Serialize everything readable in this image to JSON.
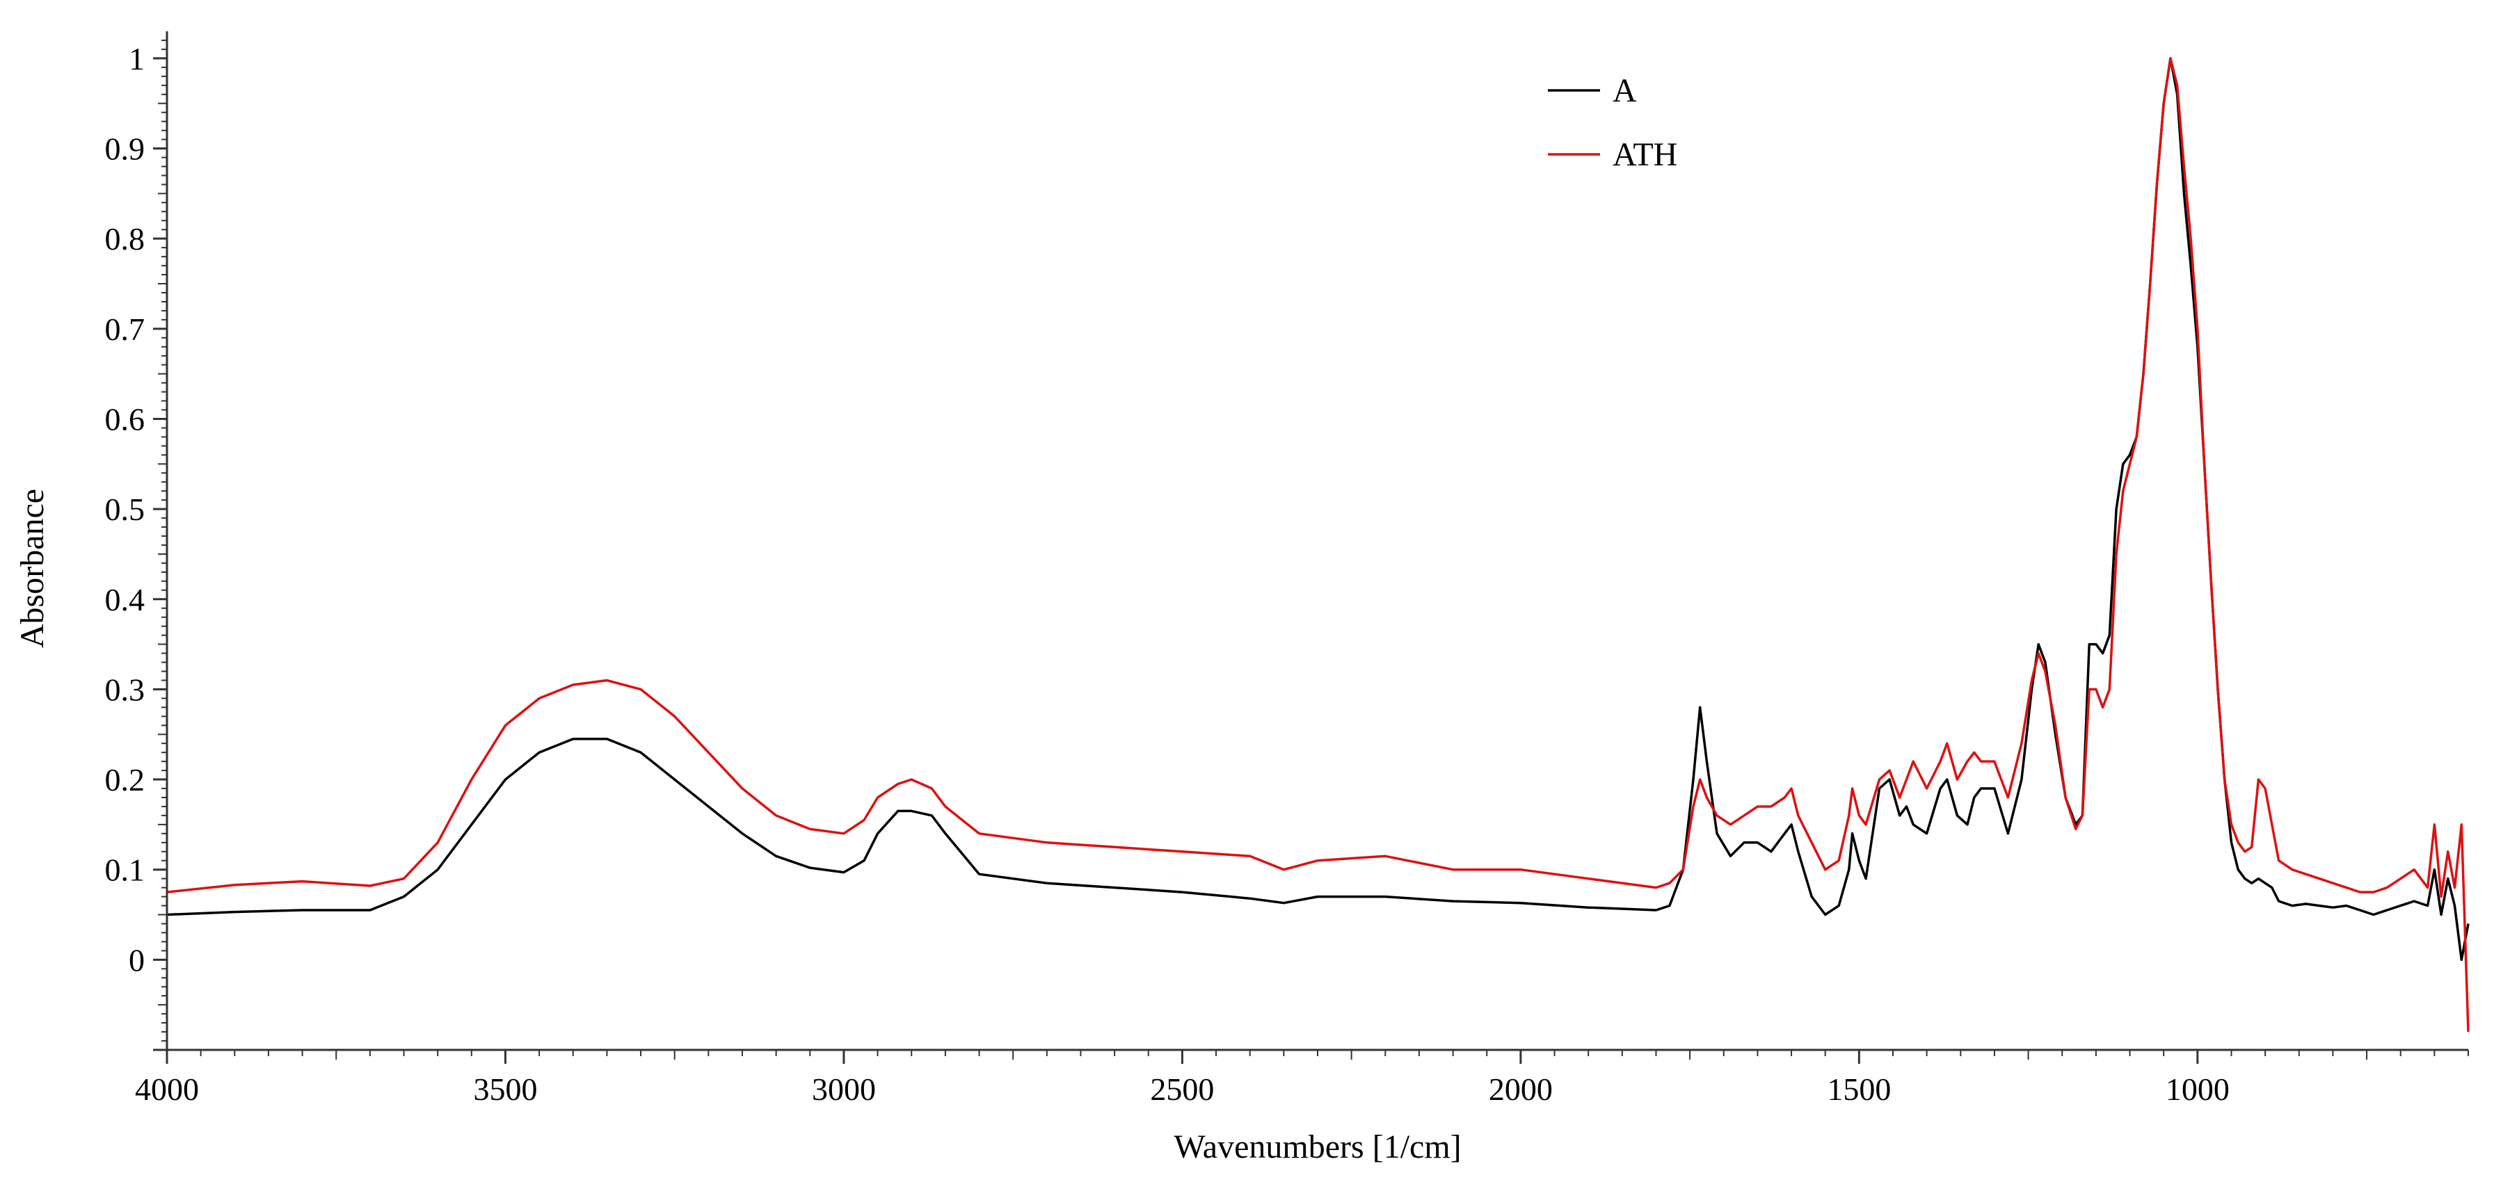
{
  "chart_data": {
    "type": "line",
    "title": "",
    "xlabel": "Wavenumbers [1/cm]",
    "ylabel": "Absorbance",
    "xlim": [
      4000,
      600
    ],
    "ylim": [
      -0.1,
      1.03
    ],
    "x_reversed": true,
    "grid": false,
    "legend_position": "top-center",
    "x_ticks": [
      4000,
      3500,
      3000,
      2500,
      2000,
      1500,
      1000
    ],
    "x_tick_labels": [
      "4000",
      "3500",
      "3000",
      "2500",
      "2000",
      "1500",
      "1000"
    ],
    "y_ticks": [
      0,
      0.1,
      0.2,
      0.3,
      0.4,
      0.5,
      0.6,
      0.7,
      0.8,
      0.9,
      1
    ],
    "y_tick_labels": [
      "0",
      "0.1",
      "0.2",
      "0.3",
      "0.4",
      "0.5",
      "0.6",
      "0.7",
      "0.8",
      "0.9",
      "1"
    ],
    "series": [
      {
        "name": "A",
        "color": "#000000",
        "x": [
          4000,
          3900,
          3800,
          3700,
          3650,
          3600,
          3550,
          3500,
          3450,
          3400,
          3350,
          3300,
          3250,
          3200,
          3150,
          3100,
          3050,
          3000,
          2970,
          2950,
          2920,
          2900,
          2870,
          2850,
          2800,
          2700,
          2600,
          2500,
          2400,
          2350,
          2300,
          2200,
          2100,
          2000,
          1900,
          1800,
          1780,
          1760,
          1745,
          1735,
          1725,
          1710,
          1690,
          1670,
          1650,
          1630,
          1610,
          1600,
          1590,
          1570,
          1550,
          1530,
          1515,
          1510,
          1500,
          1490,
          1470,
          1455,
          1440,
          1430,
          1420,
          1400,
          1380,
          1370,
          1355,
          1340,
          1330,
          1320,
          1300,
          1280,
          1260,
          1245,
          1235,
          1225,
          1210,
          1195,
          1180,
          1170,
          1160,
          1150,
          1140,
          1130,
          1120,
          1110,
          1100,
          1090,
          1080,
          1070,
          1060,
          1050,
          1040,
          1030,
          1020,
          1010,
          1000,
          990,
          980,
          970,
          960,
          950,
          940,
          930,
          920,
          910,
          900,
          890,
          880,
          860,
          840,
          820,
          800,
          780,
          760,
          740,
          720,
          700,
          680,
          660,
          650,
          640,
          630,
          620,
          610,
          600
        ],
        "y": [
          0.05,
          0.053,
          0.055,
          0.055,
          0.07,
          0.1,
          0.15,
          0.2,
          0.23,
          0.245,
          0.245,
          0.23,
          0.2,
          0.17,
          0.14,
          0.115,
          0.102,
          0.097,
          0.11,
          0.14,
          0.165,
          0.165,
          0.16,
          0.14,
          0.095,
          0.085,
          0.08,
          0.075,
          0.068,
          0.063,
          0.07,
          0.07,
          0.065,
          0.063,
          0.058,
          0.055,
          0.06,
          0.1,
          0.2,
          0.28,
          0.22,
          0.14,
          0.115,
          0.13,
          0.13,
          0.12,
          0.14,
          0.15,
          0.12,
          0.07,
          0.05,
          0.06,
          0.1,
          0.14,
          0.11,
          0.09,
          0.19,
          0.2,
          0.16,
          0.17,
          0.15,
          0.14,
          0.19,
          0.2,
          0.16,
          0.15,
          0.18,
          0.19,
          0.19,
          0.14,
          0.2,
          0.3,
          0.35,
          0.33,
          0.25,
          0.18,
          0.15,
          0.16,
          0.35,
          0.35,
          0.34,
          0.36,
          0.5,
          0.55,
          0.56,
          0.58,
          0.65,
          0.75,
          0.86,
          0.95,
          1.0,
          0.96,
          0.85,
          0.77,
          0.68,
          0.55,
          0.42,
          0.3,
          0.2,
          0.13,
          0.1,
          0.09,
          0.085,
          0.09,
          0.085,
          0.08,
          0.065,
          0.06,
          0.062,
          0.06,
          0.058,
          0.06,
          0.055,
          0.05,
          0.055,
          0.06,
          0.065,
          0.06,
          0.1,
          0.05,
          0.09,
          0.06,
          0.0,
          0.04
        ]
      },
      {
        "name": "ATH",
        "color": "#dd1111",
        "x": [
          4000,
          3900,
          3800,
          3700,
          3650,
          3600,
          3550,
          3500,
          3450,
          3400,
          3350,
          3300,
          3250,
          3200,
          3150,
          3100,
          3050,
          3000,
          2970,
          2950,
          2920,
          2900,
          2870,
          2850,
          2800,
          2700,
          2600,
          2500,
          2400,
          2350,
          2300,
          2200,
          2100,
          2000,
          1900,
          1800,
          1780,
          1760,
          1745,
          1735,
          1725,
          1710,
          1690,
          1670,
          1650,
          1630,
          1610,
          1600,
          1590,
          1570,
          1550,
          1530,
          1515,
          1510,
          1500,
          1490,
          1470,
          1455,
          1440,
          1430,
          1420,
          1400,
          1380,
          1370,
          1355,
          1340,
          1330,
          1320,
          1300,
          1280,
          1260,
          1245,
          1235,
          1225,
          1210,
          1195,
          1180,
          1170,
          1160,
          1150,
          1140,
          1130,
          1120,
          1110,
          1100,
          1090,
          1080,
          1070,
          1060,
          1050,
          1040,
          1030,
          1020,
          1010,
          1000,
          990,
          980,
          970,
          960,
          950,
          940,
          930,
          920,
          910,
          900,
          890,
          880,
          860,
          840,
          820,
          800,
          780,
          760,
          740,
          720,
          700,
          680,
          660,
          650,
          640,
          630,
          620,
          610,
          600
        ],
        "y": [
          0.075,
          0.083,
          0.087,
          0.082,
          0.09,
          0.13,
          0.2,
          0.26,
          0.29,
          0.305,
          0.31,
          0.3,
          0.27,
          0.23,
          0.19,
          0.16,
          0.145,
          0.14,
          0.155,
          0.18,
          0.195,
          0.2,
          0.19,
          0.17,
          0.14,
          0.13,
          0.125,
          0.12,
          0.115,
          0.1,
          0.11,
          0.115,
          0.1,
          0.1,
          0.09,
          0.08,
          0.085,
          0.1,
          0.17,
          0.2,
          0.18,
          0.16,
          0.15,
          0.16,
          0.17,
          0.17,
          0.18,
          0.19,
          0.16,
          0.13,
          0.1,
          0.11,
          0.16,
          0.19,
          0.16,
          0.15,
          0.2,
          0.21,
          0.18,
          0.2,
          0.22,
          0.19,
          0.22,
          0.24,
          0.2,
          0.22,
          0.23,
          0.22,
          0.22,
          0.18,
          0.24,
          0.31,
          0.34,
          0.32,
          0.26,
          0.18,
          0.145,
          0.16,
          0.3,
          0.3,
          0.28,
          0.3,
          0.45,
          0.52,
          0.55,
          0.58,
          0.65,
          0.75,
          0.86,
          0.95,
          1.0,
          0.97,
          0.88,
          0.8,
          0.7,
          0.55,
          0.42,
          0.3,
          0.2,
          0.15,
          0.13,
          0.12,
          0.125,
          0.2,
          0.19,
          0.15,
          0.11,
          0.1,
          0.095,
          0.09,
          0.085,
          0.08,
          0.075,
          0.075,
          0.08,
          0.09,
          0.1,
          0.08,
          0.15,
          0.07,
          0.12,
          0.08,
          0.15,
          -0.08
        ]
      }
    ]
  }
}
